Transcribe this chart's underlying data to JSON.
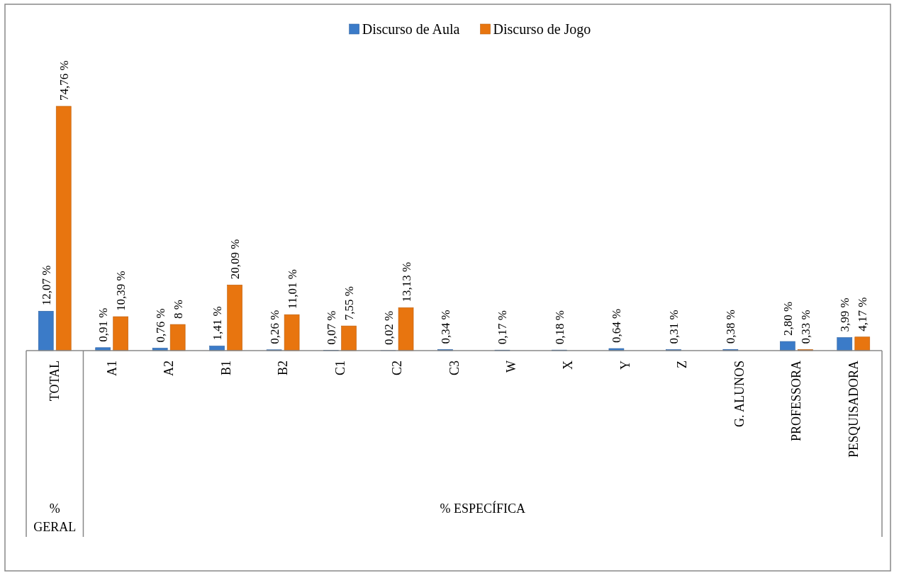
{
  "chart_data": {
    "type": "bar",
    "categories": [
      "TOTAL",
      "A1",
      "A2",
      "B1",
      "B2",
      "C1",
      "C2",
      "C3",
      "W",
      "X",
      "Y",
      "Z",
      "G. ALUNOS",
      "PROFESSORA",
      "PESQUISADORA"
    ],
    "series": [
      {
        "name": "Discurso de Aula",
        "color": "#3b7bc8",
        "values": [
          12.07,
          0.91,
          0.76,
          1.41,
          0.26,
          0.07,
          0.02,
          0.34,
          0.17,
          0.18,
          0.64,
          0.31,
          0.38,
          2.8,
          3.99
        ],
        "value_labels": [
          "12,07 %",
          "0,91 %",
          "0,76 %",
          "1,41 %",
          "0,26 %",
          "0,07 %",
          "0,02 %",
          "0,34 %",
          "0,17 %",
          "0,18 %",
          "0,64 %",
          "0,31 %",
          "0,38 %",
          "2,80 %",
          "3,99 %"
        ]
      },
      {
        "name": "Discurso de Jogo",
        "color": "#e8750f",
        "values": [
          74.76,
          10.39,
          8,
          20.09,
          11.01,
          7.55,
          13.13,
          null,
          null,
          null,
          null,
          null,
          null,
          0.33,
          4.17
        ],
        "value_labels": [
          "74,76 %",
          "10,39 %",
          "8 %",
          "20,09 %",
          "11,01 %",
          "7,55 %",
          "13,13 %",
          null,
          null,
          null,
          null,
          null,
          null,
          "0,33 %",
          "4,17 %"
        ]
      }
    ],
    "legend": "top",
    "annotations": [
      "% GERAL",
      "% ESPECÍFICA"
    ]
  }
}
